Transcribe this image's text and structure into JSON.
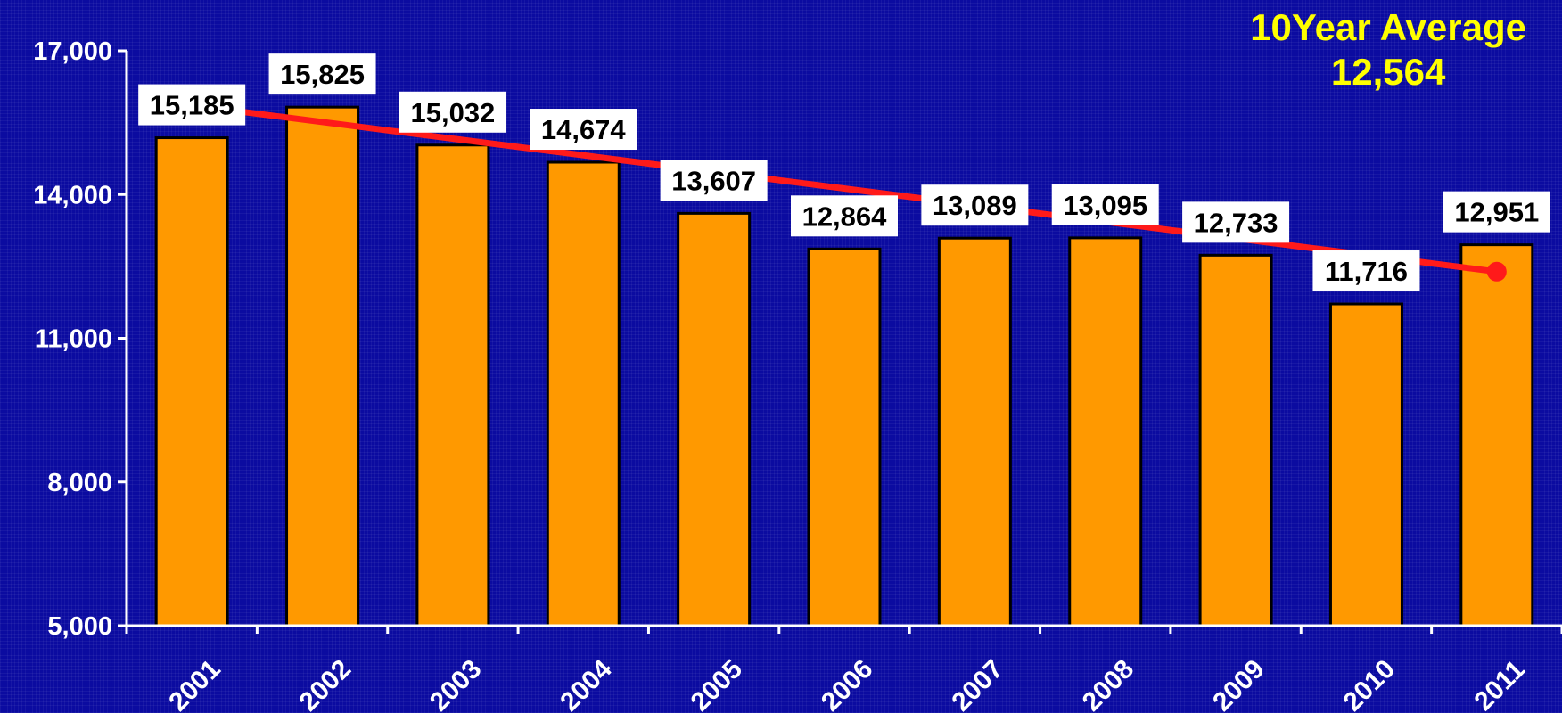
{
  "annotation": {
    "title": "10Year Average",
    "value": "12,564"
  },
  "colors": {
    "background": "#0b0ba0",
    "bar": "#ff9900",
    "trend": "#ff1a1a",
    "annotation": "#ffff00",
    "label_box": "#ffffff"
  },
  "chart_data": {
    "type": "bar",
    "title": "",
    "xlabel": "",
    "ylabel": "",
    "ylim": [
      5000,
      17000
    ],
    "yticks": [
      5000,
      8000,
      11000,
      14000,
      17000
    ],
    "ytick_labels": [
      "5,000",
      "8,000",
      "11,000",
      "14,000",
      "17,000"
    ],
    "categories": [
      "2001",
      "2002",
      "2003",
      "2004",
      "2005",
      "2006",
      "2007",
      "2008",
      "2009",
      "2010",
      "2011"
    ],
    "values": [
      15185,
      15825,
      15032,
      14674,
      13607,
      12864,
      13089,
      13095,
      12733,
      11716,
      12951
    ],
    "value_labels": [
      "15,185",
      "15,825",
      "15,032",
      "14,674",
      "13,607",
      "12,864",
      "13,089",
      "13,095",
      "12,733",
      "11,716",
      "12,951"
    ],
    "trendline": {
      "type": "line",
      "x": [
        "2001",
        "2011"
      ],
      "y": [
        15860,
        12390
      ]
    },
    "grid": false,
    "legend": "none"
  }
}
